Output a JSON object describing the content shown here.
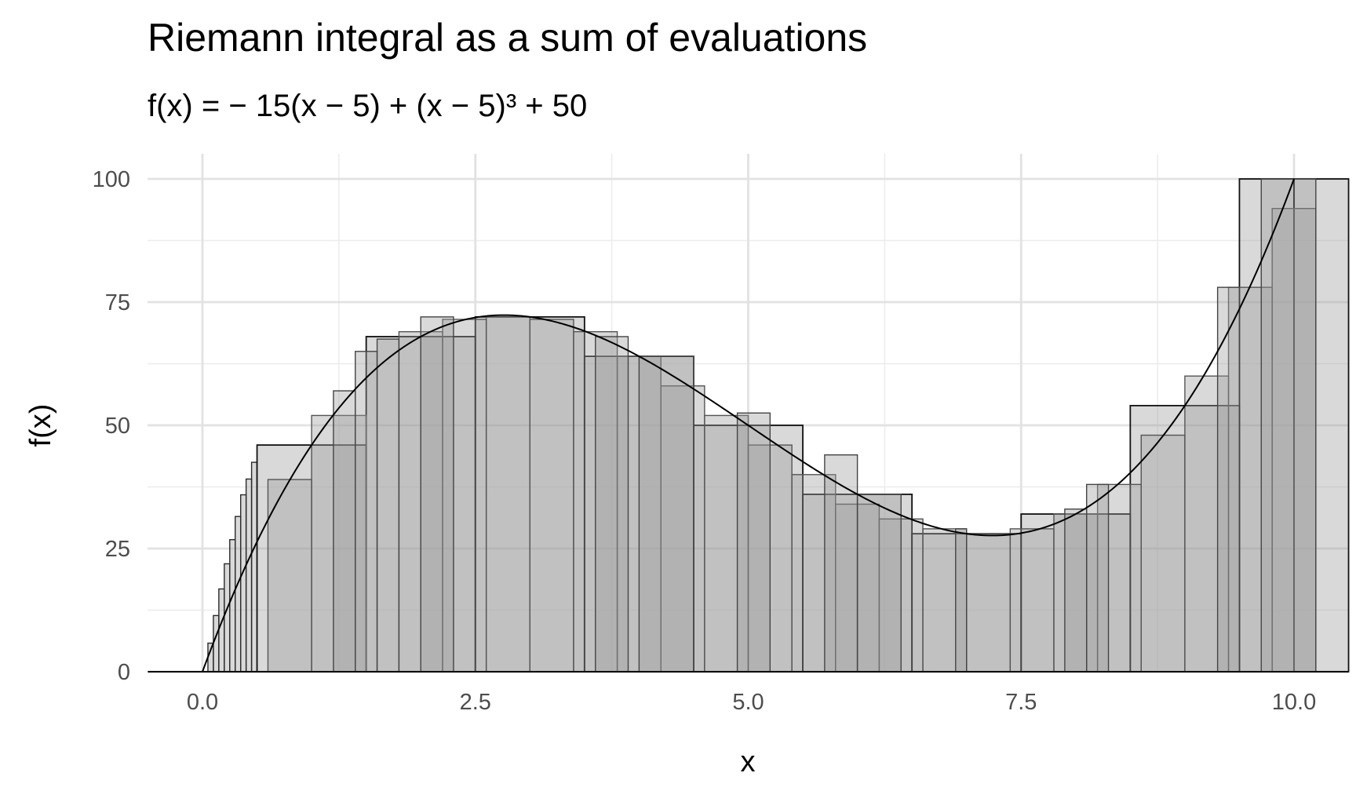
{
  "chart_data": {
    "type": "bar",
    "title": "Riemann integral as a sum of evaluations",
    "subtitle": "f(x) = − 15(x − 5) + (x − 5)³ + 50",
    "xlabel": "x",
    "ylabel": "f(x)",
    "xlim": [
      -0.5,
      10.5
    ],
    "ylim": [
      0,
      100
    ],
    "x_ticks": [
      "0.0",
      "2.5",
      "5.0",
      "7.5",
      "10.0"
    ],
    "y_ticks": [
      "0",
      "25",
      "50",
      "75",
      "100"
    ],
    "x_tick_values": [
      0,
      2.5,
      5,
      7.5,
      10
    ],
    "y_tick_values": [
      0,
      25,
      50,
      75,
      100
    ],
    "grid": true,
    "function": {
      "expression": "-15*(x-5) + (x-5)^3 + 50",
      "domain": [
        0,
        10
      ],
      "left_extension": -0.5
    },
    "series": [
      {
        "bars": [
          [
            0.05,
            0.1,
            5.8
          ],
          [
            0.1,
            0.15,
            11.4
          ],
          [
            0.15,
            0.2,
            16.8
          ],
          [
            0.2,
            0.25,
            21.9
          ],
          [
            0.25,
            0.3,
            26.8
          ],
          [
            0.3,
            0.35,
            31.5
          ],
          [
            0.35,
            0.4,
            35.9
          ],
          [
            0.4,
            0.45,
            39.1
          ],
          [
            0.45,
            0.5,
            42.5
          ]
        ]
      },
      {
        "bars": [
          [
            0.5,
            1.5,
            46.0
          ],
          [
            1.5,
            2.5,
            68.0
          ],
          [
            2.5,
            3.5,
            72.0
          ],
          [
            3.5,
            4.5,
            64.0
          ],
          [
            4.5,
            5.5,
            50.0
          ],
          [
            5.5,
            6.5,
            36.0
          ],
          [
            6.5,
            7.5,
            28.0
          ],
          [
            7.5,
            8.5,
            32.0
          ],
          [
            8.5,
            9.5,
            54.0
          ],
          [
            9.5,
            10.0,
            100.0
          ],
          [
            10.0,
            10.5,
            100.0
          ]
        ]
      },
      {
        "bars": [
          [
            0.6,
            1.0,
            39.0
          ],
          [
            1.0,
            1.5,
            52.0
          ],
          [
            1.8,
            2.2,
            69.0
          ],
          [
            2.2,
            2.6,
            71.5
          ],
          [
            2.6,
            3.0,
            72.0
          ],
          [
            3.0,
            3.4,
            71.5
          ],
          [
            3.4,
            3.8,
            69.0
          ],
          [
            3.8,
            4.2,
            64.0
          ],
          [
            4.2,
            4.6,
            58.0
          ],
          [
            4.6,
            5.0,
            52.0
          ],
          [
            5.0,
            5.4,
            46.0
          ],
          [
            5.4,
            5.8,
            40.0
          ],
          [
            5.8,
            6.2,
            34.0
          ],
          [
            6.2,
            6.6,
            31.0
          ],
          [
            6.6,
            7.0,
            29.0
          ],
          [
            7.0,
            7.4,
            28.0
          ],
          [
            7.4,
            7.8,
            29.0
          ],
          [
            7.8,
            8.2,
            32.0
          ],
          [
            8.2,
            8.6,
            38.0
          ],
          [
            8.6,
            9.0,
            48.0
          ],
          [
            9.0,
            9.4,
            60.0
          ],
          [
            9.4,
            9.8,
            78.0
          ],
          [
            9.8,
            10.2,
            94.0
          ]
        ]
      },
      {
        "bars": [
          [
            1.2,
            1.4,
            57.0
          ],
          [
            1.4,
            1.6,
            65.0
          ],
          [
            1.6,
            1.8,
            67.5
          ],
          [
            2.0,
            2.3,
            72.0
          ],
          [
            3.6,
            3.9,
            68.0
          ],
          [
            4.0,
            4.5,
            64.0
          ],
          [
            4.9,
            5.2,
            52.5
          ],
          [
            5.7,
            6.0,
            44.0
          ],
          [
            6.0,
            6.4,
            36.0
          ],
          [
            6.9,
            7.0,
            29.0
          ],
          [
            7.9,
            8.1,
            33.0
          ],
          [
            8.1,
            8.3,
            38.0
          ],
          [
            9.3,
            9.5,
            78.0
          ],
          [
            9.7,
            10.2,
            100.0
          ]
        ]
      }
    ]
  }
}
